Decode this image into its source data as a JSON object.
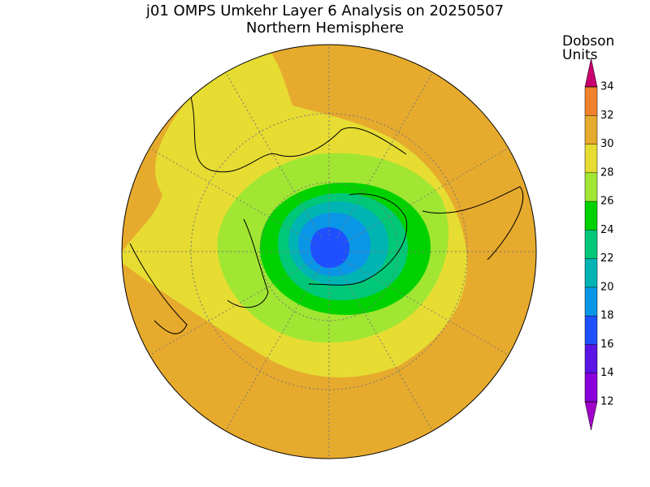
{
  "title": "j01 OMPS Umkehr Layer 6 Analysis on 20250507",
  "subtitle": "Northern Hemisphere",
  "colorbar": {
    "label_lines": [
      "Dobson",
      "Units"
    ],
    "ticks": [
      12,
      14,
      16,
      18,
      20,
      22,
      24,
      26,
      28,
      30,
      32,
      34
    ],
    "colors": [
      "#8a00dc",
      "#5a14e6",
      "#1e50ff",
      "#0a96e6",
      "#00b4b4",
      "#00c878",
      "#00d200",
      "#a0e632",
      "#e6dc32",
      "#e6aa2d",
      "#f0822d"
    ],
    "over_color": "#e60000",
    "under_color": "#a000c8",
    "top_arrow_color": "#c8006e"
  }
}
